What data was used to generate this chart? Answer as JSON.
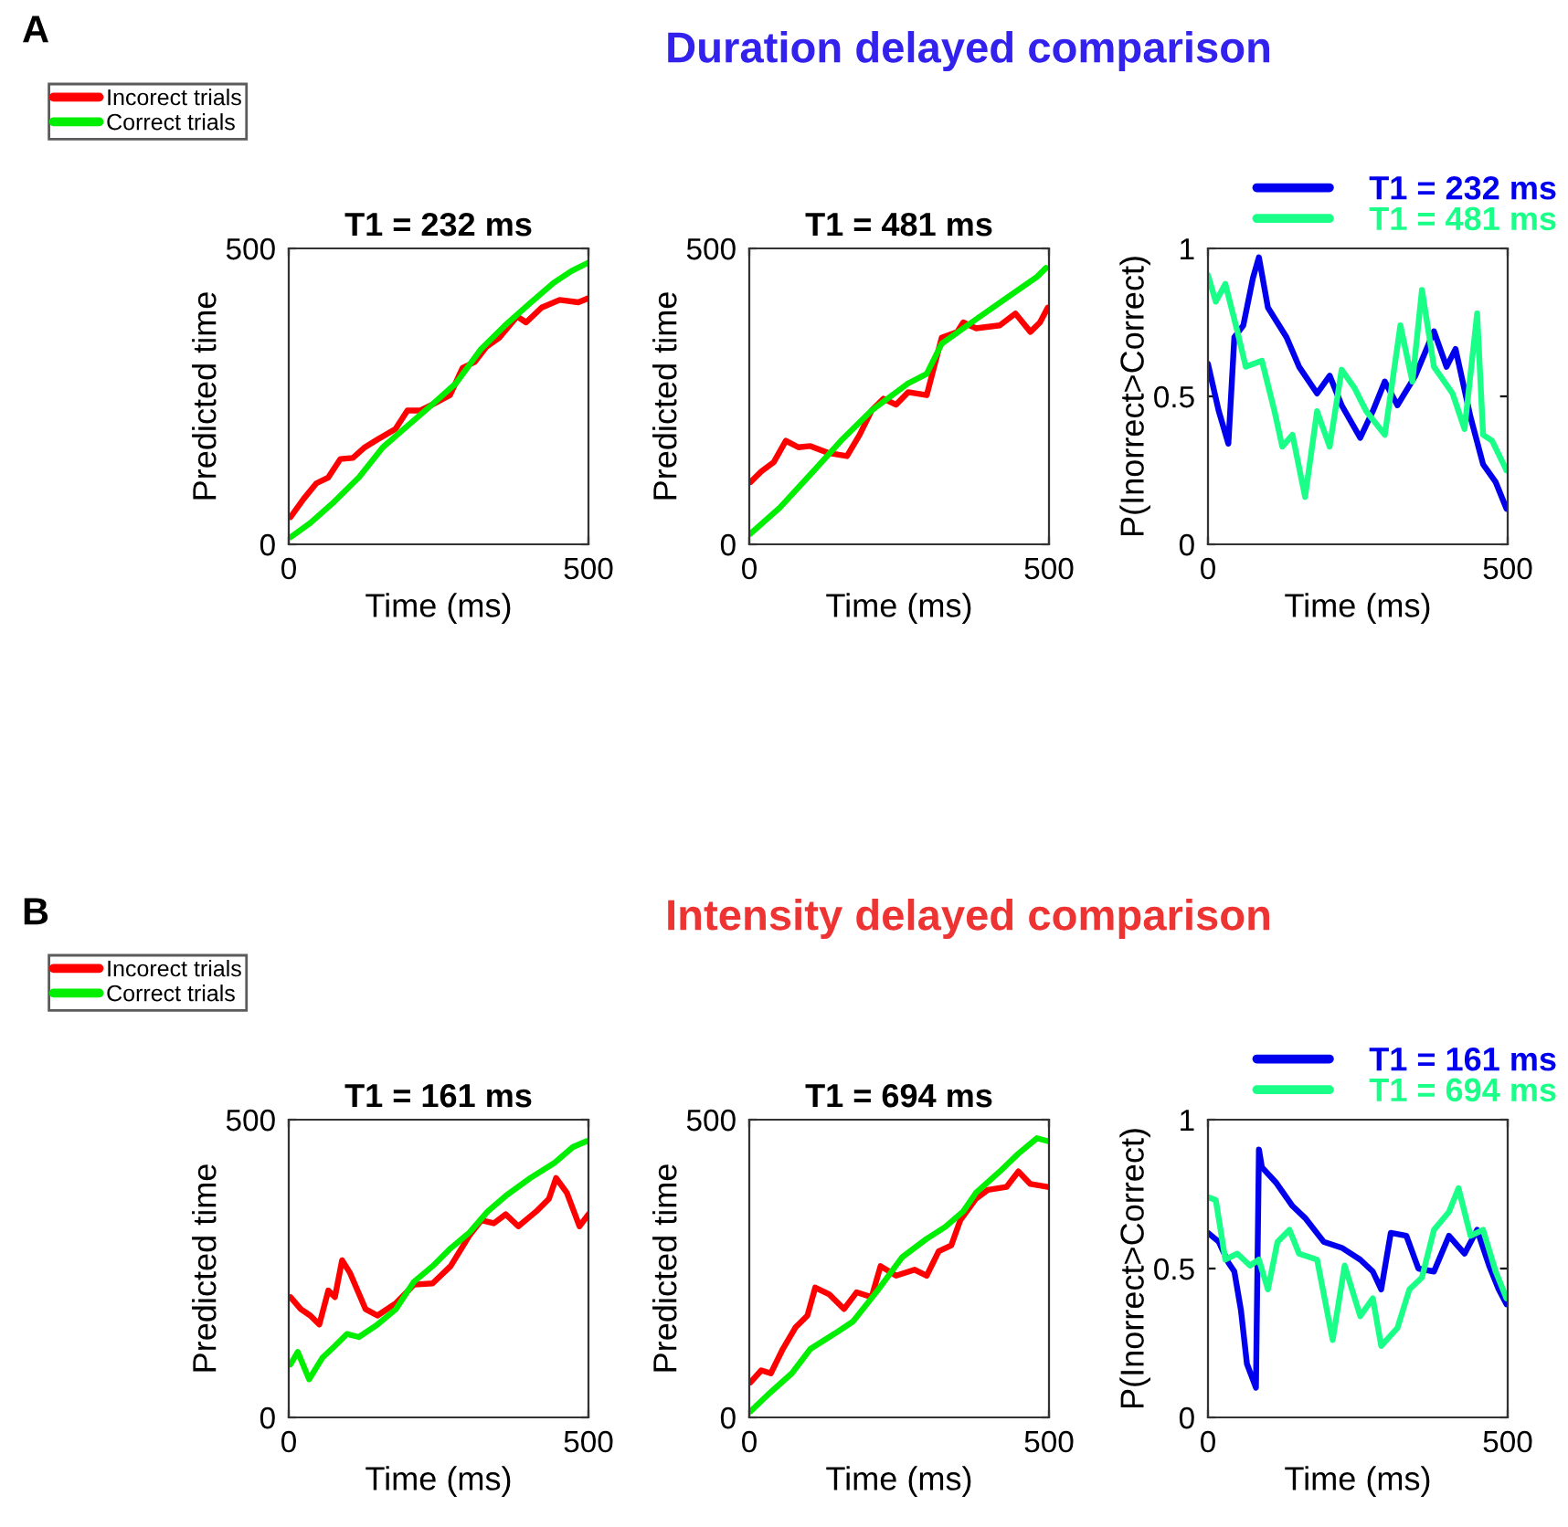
{
  "chart_data": [
    {
      "type": "line",
      "title": "T1 = 232 ms",
      "xlabel": "Time (ms)",
      "ylabel": "Predicted time",
      "xlim": [
        0,
        500
      ],
      "ylim": [
        0,
        500
      ],
      "xticks": [
        0,
        500
      ],
      "yticks": [
        0,
        500
      ],
      "legend": "top left",
      "annotations": [
        "A",
        "Duration delayed comparison"
      ],
      "series": [
        {
          "name": "Incorect trials",
          "color": "#ff0000",
          "x": [
            3,
            25,
            46,
            66,
            86,
            107,
            127,
            148,
            178,
            198,
            219,
            239,
            269,
            290,
            310,
            330,
            351,
            381,
            396,
            422,
            452,
            483,
            500
          ],
          "values": [
            46,
            77,
            103,
            113,
            144,
            146,
            164,
            177,
            195,
            226,
            226,
            236,
            252,
            298,
            308,
            334,
            349,
            385,
            375,
            400,
            413,
            409,
            416
          ]
        },
        {
          "name": "Correct trials",
          "color": "#00ee00",
          "x": [
            3,
            36,
            76,
            117,
            157,
            198,
            239,
            279,
            320,
            361,
            401,
            442,
            472,
            500
          ],
          "values": [
            12,
            36,
            72,
            113,
            164,
            200,
            236,
            272,
            329,
            370,
            406,
            442,
            462,
            476
          ]
        }
      ]
    },
    {
      "type": "line",
      "title": "T1 = 481 ms",
      "xlabel": "Time (ms)",
      "ylabel": "Predicted time",
      "xlim": [
        0,
        500
      ],
      "ylim": [
        0,
        500
      ],
      "xticks": [
        0,
        500
      ],
      "yticks": [
        0,
        500
      ],
      "series": [
        {
          "color": "#ff0000",
          "x": [
            2,
            20,
            41,
            61,
            82,
            102,
            133,
            163,
            184,
            204,
            224,
            245,
            265,
            296,
            321,
            347,
            357,
            378,
            418,
            444,
            469,
            485,
            498
          ],
          "values": [
            105,
            123,
            139,
            175,
            164,
            166,
            154,
            149,
            185,
            226,
            246,
            236,
            257,
            252,
            349,
            359,
            375,
            365,
            370,
            390,
            359,
            375,
            400
          ]
        },
        {
          "color": "#00ee00",
          "x": [
            2,
            51,
            102,
            153,
            204,
            265,
            296,
            321,
            378,
            429,
            480,
            495
          ],
          "values": [
            18,
            62,
            118,
            175,
            226,
            272,
            288,
            339,
            380,
            416,
            452,
            467
          ]
        }
      ]
    },
    {
      "type": "line",
      "xlabel": "Time (ms)",
      "ylabel": "P(Inorrect>Correct)",
      "xlim": [
        0,
        500
      ],
      "ylim": [
        0,
        1
      ],
      "xticks": [
        0,
        500
      ],
      "yticks": [
        0,
        0.5,
        1
      ],
      "legend": "top right",
      "series": [
        {
          "name": "T1 = 232 ms",
          "color": "#0000ee",
          "x": [
            0,
            18,
            34,
            44,
            59,
            75,
            85,
            100,
            131,
            152,
            182,
            203,
            223,
            254,
            275,
            295,
            316,
            346,
            377,
            398,
            413,
            438,
            459,
            480,
            498
          ],
          "values": [
            0.61,
            0.45,
            0.34,
            0.7,
            0.74,
            0.9,
            0.97,
            0.8,
            0.7,
            0.6,
            0.51,
            0.57,
            0.47,
            0.36,
            0.45,
            0.55,
            0.47,
            0.57,
            0.72,
            0.6,
            0.66,
            0.43,
            0.27,
            0.21,
            0.12
          ]
        },
        {
          "name": "T1 = 481 ms",
          "color": "#1aff88",
          "x": [
            0,
            13,
            29,
            49,
            63,
            90,
            111,
            124,
            141,
            162,
            182,
            203,
            223,
            244,
            264,
            295,
            321,
            341,
            357,
            377,
            408,
            428,
            449,
            459,
            474,
            498
          ],
          "values": [
            0.91,
            0.82,
            0.88,
            0.72,
            0.6,
            0.62,
            0.45,
            0.33,
            0.37,
            0.16,
            0.45,
            0.33,
            0.59,
            0.53,
            0.45,
            0.37,
            0.74,
            0.55,
            0.86,
            0.6,
            0.51,
            0.39,
            0.78,
            0.37,
            0.35,
            0.25
          ]
        }
      ]
    },
    {
      "type": "line",
      "title": "T1 = 161 ms",
      "xlabel": "Time (ms)",
      "ylabel": "Predicted time",
      "xlim": [
        0,
        500
      ],
      "ylim": [
        0,
        500
      ],
      "xticks": [
        0,
        500
      ],
      "yticks": [
        0,
        500
      ],
      "legend": "top left",
      "annotations": [
        "B",
        "Intensity delayed comparison"
      ],
      "series": [
        {
          "name": "Incorect trials",
          "color": "#ff0000",
          "x": [
            3,
            20,
            36,
            51,
            66,
            77,
            89,
            102,
            128,
            148,
            179,
            209,
            240,
            270,
            301,
            321,
            342,
            362,
            383,
            413,
            434,
            446,
            464,
            485,
            500
          ],
          "values": [
            202,
            182,
            171,
            156,
            213,
            202,
            264,
            243,
            182,
            171,
            192,
            223,
            225,
            254,
            305,
            331,
            326,
            341,
            321,
            346,
            367,
            402,
            377,
            321,
            341
          ]
        },
        {
          "name": "Correct trials",
          "color": "#00ee00",
          "x": [
            3,
            15,
            34,
            56,
            77,
            97,
            117,
            148,
            179,
            209,
            240,
            270,
            301,
            332,
            362,
            403,
            444,
            474,
            497
          ],
          "values": [
            89,
            110,
            64,
            100,
            120,
            140,
            135,
            156,
            182,
            228,
            254,
            284,
            310,
            346,
            372,
            402,
            428,
            454,
            464
          ]
        }
      ]
    },
    {
      "type": "line",
      "title": "T1 = 694 ms",
      "xlabel": "Time (ms)",
      "ylabel": "Predicted time",
      "xlim": [
        0,
        500
      ],
      "ylim": [
        0,
        500
      ],
      "xticks": [
        0,
        500
      ],
      "yticks": [
        0,
        500
      ],
      "series": [
        {
          "color": "#ff0000",
          "x": [
            2,
            20,
            36,
            56,
            77,
            97,
            110,
            133,
            158,
            179,
            204,
            219,
            245,
            276,
            296,
            316,
            337,
            352,
            378,
            398,
            429,
            449,
            469,
            498
          ],
          "values": [
            59,
            79,
            74,
            115,
            151,
            171,
            218,
            207,
            182,
            210,
            202,
            254,
            238,
            248,
            238,
            279,
            289,
            331,
            367,
            382,
            387,
            413,
            392,
            387
          ]
        },
        {
          "color": "#00ee00",
          "x": [
            2,
            31,
            71,
            102,
            143,
            173,
            214,
            255,
            296,
            327,
            357,
            378,
            418,
            449,
            480,
            498
          ],
          "values": [
            10,
            38,
            74,
            115,
            141,
            161,
            213,
            269,
            300,
            320,
            346,
            377,
            413,
            443,
            469,
            464
          ]
        }
      ]
    },
    {
      "type": "line",
      "xlabel": "Time (ms)",
      "ylabel": "P(Inorrect>Correct)",
      "xlim": [
        0,
        500
      ],
      "ylim": [
        0,
        1
      ],
      "xticks": [
        0,
        500
      ],
      "yticks": [
        0,
        0.5,
        1
      ],
      "legend": "top right",
      "series": [
        {
          "name": "T1 = 161 ms",
          "color": "#0000ee",
          "x": [
            0,
            18,
            34,
            44,
            55,
            65,
            80,
            85,
            90,
            113,
            141,
            162,
            193,
            223,
            254,
            275,
            289,
            305,
            331,
            351,
            377,
            402,
            428,
            449,
            469,
            485,
            498
          ],
          "values": [
            0.62,
            0.59,
            0.52,
            0.49,
            0.36,
            0.18,
            0.1,
            0.9,
            0.84,
            0.79,
            0.71,
            0.67,
            0.59,
            0.57,
            0.53,
            0.49,
            0.43,
            0.62,
            0.61,
            0.5,
            0.49,
            0.61,
            0.55,
            0.63,
            0.51,
            0.43,
            0.38
          ]
        },
        {
          "name": "T1 = 694 ms",
          "color": "#1aff88",
          "x": [
            0,
            13,
            29,
            49,
            70,
            85,
            100,
            116,
            136,
            152,
            182,
            208,
            228,
            254,
            275,
            289,
            316,
            336,
            357,
            377,
            402,
            418,
            438,
            459,
            480,
            498
          ],
          "values": [
            0.74,
            0.73,
            0.53,
            0.55,
            0.51,
            0.53,
            0.43,
            0.59,
            0.63,
            0.55,
            0.53,
            0.26,
            0.51,
            0.34,
            0.4,
            0.24,
            0.3,
            0.43,
            0.47,
            0.63,
            0.69,
            0.77,
            0.61,
            0.63,
            0.49,
            0.4
          ]
        }
      ]
    }
  ]
}
